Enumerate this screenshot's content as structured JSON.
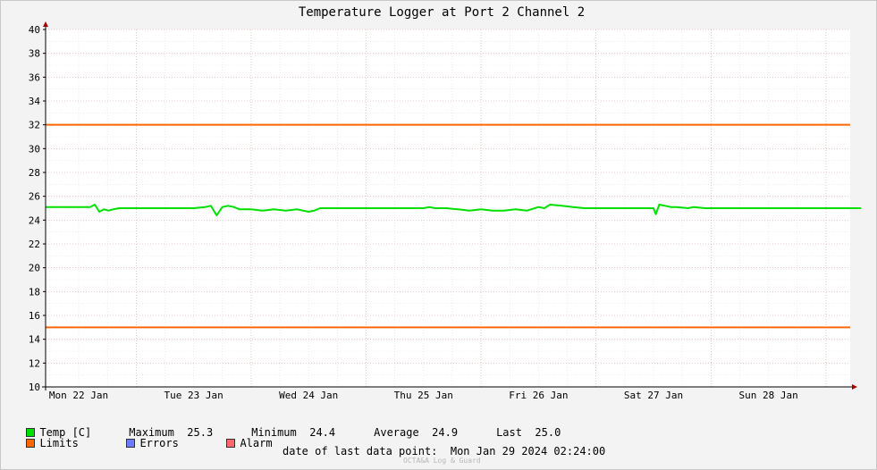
{
  "chart_data": {
    "type": "line",
    "title": "Temperature Logger at Port 2 Channel 2",
    "ylim": [
      10,
      40
    ],
    "ytick_step": 2,
    "x_days": [
      "Mon 22 Jan",
      "Tue 23 Jan",
      "Wed 24 Jan",
      "Thu 25 Jan",
      "Fri 26 Jan",
      "Sat 27 Jan",
      "Sun 28 Jan"
    ],
    "grid": true,
    "series": [
      {
        "name": "Temp [C]",
        "color": "#00e000",
        "x_days": [
          0,
          0.05,
          0.1,
          0.14,
          0.18,
          0.22,
          0.26,
          0.3,
          0.35,
          0.4,
          0.5,
          0.55,
          0.7,
          0.85,
          1.0,
          1.1,
          1.15,
          1.2,
          1.25,
          1.3,
          1.35,
          1.4,
          1.5,
          1.6,
          1.7,
          1.8,
          1.9,
          2.0,
          2.05,
          2.1,
          2.2,
          2.3,
          2.5,
          2.7,
          2.9,
          3.0,
          3.05,
          3.1,
          3.2,
          3.3,
          3.4,
          3.5,
          3.6,
          3.7,
          3.8,
          3.9,
          4.0,
          4.05,
          4.1,
          4.2,
          4.3,
          4.4,
          4.5,
          4.6,
          4.7,
          4.8,
          4.9,
          5.0,
          5.02,
          5.05,
          5.1,
          5.15,
          5.2,
          5.3,
          5.35,
          5.45,
          5.6,
          5.8,
          6.0,
          6.3,
          6.6,
          6.8
        ],
        "values": [
          25.1,
          25.1,
          25.1,
          25.3,
          24.7,
          24.9,
          24.8,
          24.9,
          25.0,
          25.0,
          25.0,
          25.0,
          25.0,
          25.0,
          25.0,
          25.1,
          25.2,
          24.4,
          25.1,
          25.2,
          25.1,
          24.9,
          24.9,
          24.8,
          24.9,
          24.8,
          24.9,
          24.7,
          24.8,
          25.0,
          25.0,
          25.0,
          25.0,
          25.0,
          25.0,
          25.0,
          25.1,
          25.0,
          25.0,
          24.9,
          24.8,
          24.9,
          24.8,
          24.8,
          24.9,
          24.8,
          25.1,
          25.0,
          25.3,
          25.2,
          25.1,
          25.0,
          25.0,
          25.0,
          25.0,
          25.0,
          25.0,
          25.0,
          24.5,
          25.3,
          25.2,
          25.1,
          25.1,
          25.0,
          25.1,
          25.0,
          25.0,
          25.0,
          25.0,
          25.0,
          25.0,
          25.0
        ]
      },
      {
        "name": "Limits",
        "color": "#ff6600",
        "upper": 32,
        "lower": 15
      }
    ]
  },
  "legend": {
    "temp_label": "Temp [C]",
    "temp_color": "#00e000",
    "max_label": "Maximum",
    "max_value": "25.3",
    "min_label": "Minimum",
    "min_value": "24.4",
    "avg_label": "Average",
    "avg_value": "24.9",
    "last_label": "Last",
    "last_value": "25.0",
    "limits_label": "Limits",
    "limits_color": "#ff6600",
    "errors_label": "Errors",
    "errors_color": "#6a7cff",
    "alarm_label": "Alarm",
    "alarm_color": "#ff6a6a"
  },
  "footer": {
    "last_point": "date of last data point:  Mon Jan 29 2024 02:24:00",
    "watermark": "OCTA&A Log & Guard"
  }
}
